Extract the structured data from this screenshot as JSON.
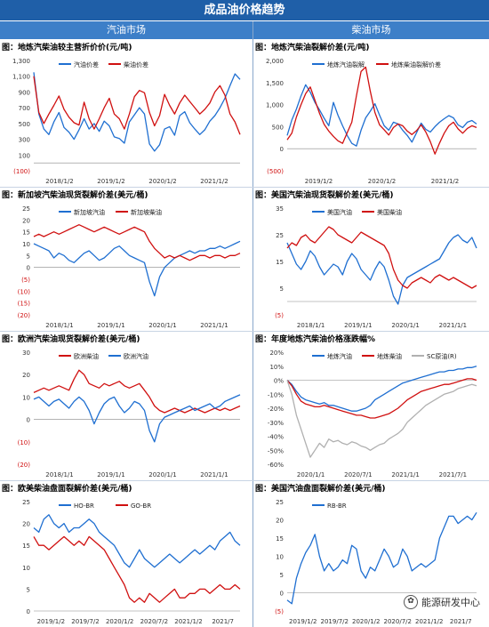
{
  "header": {
    "title": "成品油价格趋势",
    "left_section": "汽油市场",
    "right_section": "柴油市场"
  },
  "watermark": "能源研发中心",
  "colors": {
    "blue": "#1f6fd1",
    "red": "#d01010",
    "gray": "#b0b0b0"
  },
  "chart_data": [
    {
      "id": "p1",
      "type": "line",
      "title": "图：地炼汽柴油较主营折价价(元/吨)",
      "yticks": [
        "1,300",
        "1,100",
        "900",
        "700",
        "500",
        "300",
        "100",
        "(100)"
      ],
      "ylim": [
        -100,
        1300
      ],
      "xticks": [
        "2018/1/2",
        "2019/1/2",
        "2020/1/2",
        "2021/1/2"
      ],
      "series": [
        {
          "name": "汽油价差",
          "color": "blue",
          "values": [
            1150,
            620,
            430,
            360,
            520,
            640,
            450,
            390,
            300,
            420,
            560,
            430,
            500,
            400,
            530,
            470,
            330,
            310,
            250,
            520,
            610,
            700,
            620,
            240,
            150,
            230,
            430,
            460,
            350,
            600,
            650,
            510,
            430,
            360,
            420,
            530,
            600,
            700,
            820,
            980,
            1130,
            1060
          ]
        },
        {
          "name": "柴油价差",
          "color": "red",
          "values": [
            1100,
            640,
            500,
            620,
            730,
            850,
            680,
            580,
            510,
            480,
            770,
            560,
            430,
            560,
            700,
            820,
            620,
            560,
            430,
            620,
            840,
            920,
            890,
            640,
            470,
            600,
            870,
            730,
            620,
            760,
            860,
            780,
            700,
            620,
            680,
            760,
            900,
            980,
            860,
            620,
            520,
            360
          ]
        }
      ]
    },
    {
      "id": "p2",
      "type": "line",
      "title": "图：地炼汽柴油裂解价差(元/吨)",
      "yticks": [
        "2,000",
        "1,500",
        "1,000",
        "500",
        "0",
        "(500)"
      ],
      "ylim": [
        -500,
        2000
      ],
      "xticks": [
        "2019/1/2",
        "2020/1/2",
        "2021/1/2"
      ],
      "series": [
        {
          "name": "地炼汽油裂解",
          "color": "blue",
          "values": [
            300,
            650,
            900,
            1200,
            1450,
            1280,
            1050,
            880,
            690,
            520,
            1050,
            760,
            520,
            300,
            120,
            60,
            420,
            700,
            850,
            1020,
            760,
            520,
            420,
            600,
            560,
            420,
            300,
            150,
            360,
            580,
            440,
            380,
            500,
            600,
            680,
            750,
            700,
            540,
            480,
            600,
            640,
            560
          ]
        },
        {
          "name": "地炼柴油裂解价差",
          "color": "red",
          "values": [
            200,
            350,
            720,
            1000,
            1250,
            1400,
            1100,
            800,
            550,
            400,
            280,
            180,
            120,
            360,
            600,
            1200,
            1750,
            1850,
            1300,
            820,
            540,
            430,
            310,
            480,
            560,
            520,
            400,
            320,
            410,
            540,
            380,
            160,
            -120,
            130,
            350,
            520,
            600,
            450,
            350,
            460,
            520,
            480
          ]
        }
      ]
    },
    {
      "id": "p3",
      "type": "line",
      "title": "图：新加坡汽柴油现货裂解价差(美元/桶)",
      "yticks": [
        "25",
        "20",
        "15",
        "10",
        "5",
        "0",
        "(5)",
        "(10)",
        "(15)",
        "(20)"
      ],
      "ylim": [
        -20,
        25
      ],
      "xticks": [
        "2018/1/1",
        "2019/1/1",
        "2020/1/1",
        "2021/1/1"
      ],
      "series": [
        {
          "name": "新加坡汽油",
          "color": "blue",
          "values": [
            10,
            9,
            8,
            7,
            4,
            6,
            5,
            3,
            2,
            4,
            6,
            7,
            5,
            3,
            4,
            6,
            8,
            9,
            7,
            5,
            4,
            3,
            2,
            -6,
            -12,
            -4,
            0,
            2,
            4,
            5,
            6,
            7,
            6,
            7,
            7,
            8,
            8,
            9,
            8,
            9,
            10,
            11
          ]
        },
        {
          "name": "新加坡柴油",
          "color": "red",
          "values": [
            13,
            14,
            13,
            14,
            15,
            14,
            15,
            16,
            17,
            18,
            17,
            16,
            15,
            16,
            17,
            16,
            15,
            14,
            15,
            16,
            17,
            16,
            15,
            11,
            8,
            6,
            4,
            5,
            4,
            5,
            4,
            3,
            4,
            5,
            5,
            4,
            5,
            5,
            4,
            5,
            5,
            6
          ]
        }
      ]
    },
    {
      "id": "p4",
      "type": "line",
      "title": "图：美国汽柴油现货裂解价差(美元/桶)",
      "yticks": [
        "35",
        "25",
        "15",
        "5",
        "(5)"
      ],
      "ylim": [
        -5,
        35
      ],
      "xticks": [
        "2018/1/1",
        "2019/1/1",
        "2020/1/1",
        "2021/1/1"
      ],
      "series": [
        {
          "name": "美国汽油",
          "color": "blue",
          "values": [
            22,
            18,
            14,
            12,
            15,
            19,
            17,
            13,
            10,
            12,
            14,
            13,
            10,
            15,
            18,
            16,
            12,
            10,
            8,
            12,
            15,
            13,
            8,
            2,
            -1,
            6,
            9,
            10,
            11,
            12,
            13,
            14,
            15,
            16,
            19,
            22,
            24,
            25,
            23,
            22,
            24,
            20
          ]
        },
        {
          "name": "美国柴油",
          "color": "red",
          "values": [
            20,
            22,
            21,
            24,
            25,
            23,
            22,
            24,
            26,
            28,
            27,
            25,
            24,
            23,
            22,
            24,
            26,
            25,
            24,
            23,
            22,
            21,
            18,
            12,
            8,
            6,
            5,
            7,
            8,
            9,
            8,
            7,
            9,
            10,
            9,
            8,
            9,
            8,
            7,
            6,
            5,
            6
          ]
        }
      ]
    },
    {
      "id": "p5",
      "type": "line",
      "title": "图：欧洲汽柴油现货裂解价差(美元/桶)",
      "yticks": [
        "30",
        "20",
        "10",
        "0",
        "(10)",
        "(20)"
      ],
      "ylim": [
        -20,
        30
      ],
      "xticks": [
        "2018/1/1",
        "2019/1/1",
        "2020/1/1",
        "2021/1/1"
      ],
      "series": [
        {
          "name": "欧洲柴油",
          "color": "red",
          "values": [
            12,
            13,
            14,
            13,
            14,
            15,
            14,
            13,
            18,
            22,
            20,
            16,
            15,
            14,
            16,
            15,
            16,
            17,
            15,
            14,
            15,
            16,
            13,
            10,
            6,
            4,
            3,
            4,
            5,
            4,
            3,
            4,
            5,
            4,
            3,
            4,
            5,
            4,
            5,
            4,
            5,
            6
          ]
        },
        {
          "name": "欧洲汽油",
          "color": "blue",
          "values": [
            9,
            10,
            8,
            6,
            8,
            9,
            7,
            5,
            8,
            10,
            8,
            4,
            -2,
            3,
            7,
            9,
            10,
            6,
            3,
            5,
            8,
            7,
            4,
            -5,
            -10,
            -2,
            1,
            2,
            3,
            4,
            5,
            6,
            4,
            5,
            6,
            7,
            5,
            6,
            8,
            9,
            10,
            11
          ]
        }
      ]
    },
    {
      "id": "p6",
      "type": "line",
      "title": "图：年度地炼汽柴油价格涨跌幅%",
      "yticks": [
        "20%",
        "10%",
        "0%",
        "-10%",
        "-20%",
        "-30%",
        "-40%",
        "-50%",
        "-60%"
      ],
      "ylim": [
        -60,
        20
      ],
      "xticks": [
        "2020/1/1",
        "2020/7/1",
        "2021/1/1",
        "2021/7/1"
      ],
      "series": [
        {
          "name": "地炼汽油",
          "color": "blue",
          "values": [
            0,
            -3,
            -8,
            -12,
            -14,
            -15,
            -16,
            -17,
            -16,
            -18,
            -18,
            -19,
            -20,
            -21,
            -22,
            -22,
            -21,
            -20,
            -18,
            -14,
            -12,
            -10,
            -8,
            -6,
            -4,
            -2,
            -1,
            0,
            1,
            2,
            3,
            4,
            5,
            6,
            6,
            7,
            7,
            8,
            8,
            9,
            9,
            10
          ]
        },
        {
          "name": "地炼柴油",
          "color": "red",
          "values": [
            0,
            -4,
            -10,
            -15,
            -17,
            -18,
            -19,
            -19,
            -18,
            -19,
            -20,
            -21,
            -22,
            -23,
            -24,
            -25,
            -25,
            -26,
            -27,
            -27,
            -26,
            -25,
            -24,
            -22,
            -20,
            -17,
            -14,
            -12,
            -10,
            -8,
            -7,
            -6,
            -5,
            -4,
            -3,
            -3,
            -2,
            -1,
            0,
            1,
            1,
            0
          ]
        },
        {
          "name": "SC原油(R)",
          "color": "gray",
          "values": [
            0,
            -10,
            -25,
            -35,
            -45,
            -55,
            -50,
            -45,
            -48,
            -42,
            -44,
            -43,
            -45,
            -46,
            -44,
            -45,
            -47,
            -48,
            -50,
            -48,
            -46,
            -45,
            -42,
            -40,
            -38,
            -35,
            -30,
            -27,
            -24,
            -21,
            -18,
            -16,
            -14,
            -12,
            -10,
            -9,
            -8,
            -6,
            -5,
            -4,
            -3,
            -4
          ]
        }
      ]
    },
    {
      "id": "p7",
      "type": "line",
      "title": "图：欧美柴油盘面裂解价差(美元/桶)",
      "yticks": [
        "25",
        "20",
        "15",
        "10",
        "5",
        "0"
      ],
      "ylim": [
        0,
        25
      ],
      "xticks": [
        "2019/1/2",
        "2019/7/2",
        "2020/1/2",
        "2020/7/2",
        "2021/1/2",
        "2021/7"
      ],
      "series": [
        {
          "name": "HO-BR",
          "color": "blue",
          "values": [
            19,
            18,
            21,
            22,
            20,
            19,
            20,
            18,
            19,
            19,
            20,
            21,
            20,
            18,
            17,
            16,
            15,
            13,
            11,
            10,
            12,
            14,
            12,
            11,
            10,
            11,
            12,
            13,
            12,
            11,
            12,
            13,
            14,
            13,
            14,
            15,
            14,
            16,
            17,
            18,
            16,
            15
          ]
        },
        {
          "name": "GO-BR",
          "color": "red",
          "values": [
            17,
            15,
            15,
            14,
            15,
            16,
            17,
            16,
            15,
            16,
            15,
            17,
            16,
            15,
            14,
            12,
            10,
            8,
            6,
            3,
            2,
            3,
            2,
            4,
            3,
            2,
            3,
            4,
            5,
            3,
            3,
            4,
            4,
            5,
            5,
            4,
            5,
            6,
            5,
            5,
            6,
            5
          ]
        }
      ]
    },
    {
      "id": "p8",
      "type": "line",
      "title": "图：美国汽油盘面裂解价差(美元/桶)",
      "yticks": [
        "25",
        "20",
        "15",
        "10",
        "5",
        "0",
        "(5)"
      ],
      "ylim": [
        -5,
        25
      ],
      "xticks": [
        "2019/1/2",
        "2019/7/2",
        "2020/1/2",
        "2020/7/2",
        "2021/1/2",
        "2021/7"
      ],
      "series": [
        {
          "name": "RB-BR",
          "color": "blue",
          "values": [
            -2,
            -3,
            4,
            8,
            11,
            13,
            16,
            10,
            6,
            8,
            6,
            7,
            9,
            8,
            13,
            12,
            6,
            4,
            7,
            6,
            9,
            12,
            10,
            7,
            8,
            12,
            10,
            6,
            7,
            8,
            7,
            8,
            9,
            15,
            18,
            21,
            21,
            19,
            20,
            21,
            20,
            22
          ]
        }
      ]
    }
  ]
}
